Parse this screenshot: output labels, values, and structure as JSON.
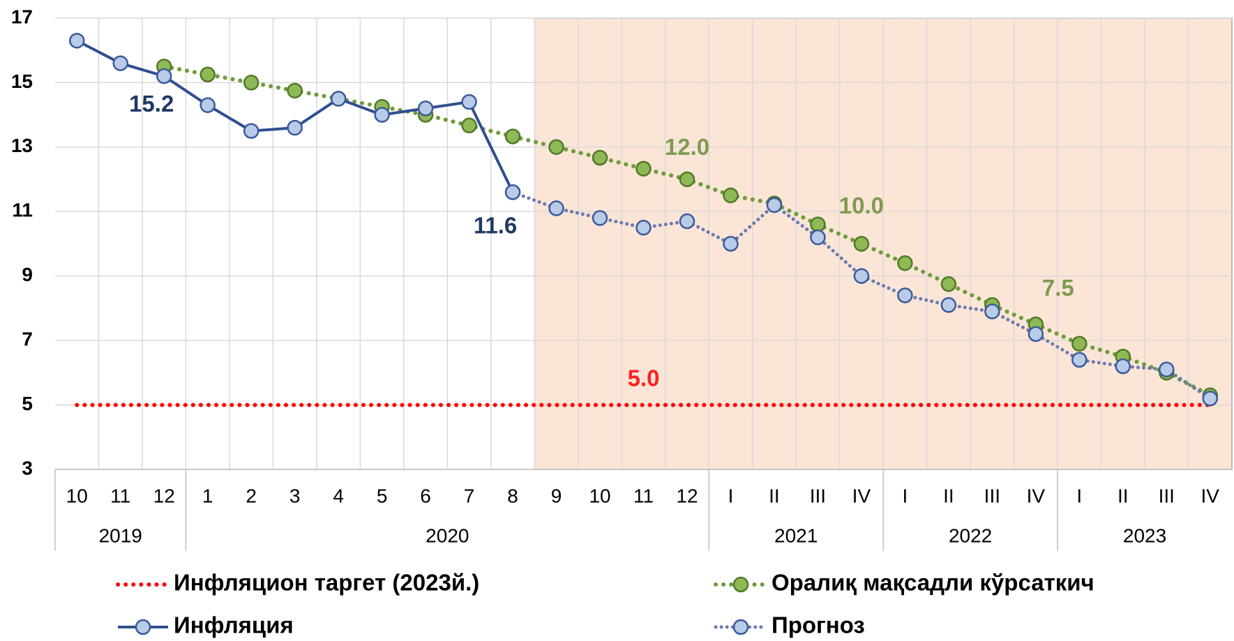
{
  "chart_data": {
    "type": "line",
    "categories": [
      "10",
      "11",
      "12",
      "1",
      "2",
      "3",
      "4",
      "5",
      "6",
      "7",
      "8",
      "9",
      "10",
      "11",
      "12",
      "I",
      "II",
      "III",
      "IV",
      "I",
      "II",
      "III",
      "IV",
      "I",
      "II",
      "III",
      "IV"
    ],
    "groups": [
      {
        "label": "2019",
        "count": 3
      },
      {
        "label": "2020",
        "count": 12
      },
      {
        "label": "2021",
        "count": 4
      },
      {
        "label": "2022",
        "count": 4
      },
      {
        "label": "2023",
        "count": 4
      }
    ],
    "ylim": [
      3,
      17
    ],
    "yticks": [
      3,
      5,
      7,
      9,
      11,
      13,
      15,
      17
    ],
    "grid": true,
    "shade_after_series": 2,
    "series": [
      {
        "name": "Инфляцион таргет (2023й.)",
        "color": "#ff0000",
        "style": "dotted",
        "markers": false,
        "values": [
          5,
          5,
          5,
          5,
          5,
          5,
          5,
          5,
          5,
          5,
          5,
          5,
          5,
          5,
          5,
          5,
          5,
          5,
          5,
          5,
          5,
          5,
          5,
          5,
          5,
          5,
          5
        ],
        "value_labels": [
          null,
          null,
          null,
          null,
          null,
          null,
          null,
          null,
          null,
          null,
          null,
          null,
          null,
          "5.0",
          null,
          null,
          null,
          null,
          null,
          null,
          null,
          null,
          null,
          null,
          null,
          null,
          null
        ]
      },
      {
        "name": "Оралиқ мақсадли кўрсаткич",
        "color": "#6f9a3c",
        "style": "dotted",
        "markers": true,
        "values": [
          null,
          null,
          15.5,
          15.25,
          15.0,
          14.75,
          14.5,
          14.25,
          14.0,
          13.67,
          13.33,
          13.0,
          12.67,
          12.33,
          12.0,
          11.5,
          11.25,
          10.6,
          10.0,
          9.4,
          8.75,
          8.1,
          7.5,
          6.9,
          6.5,
          6.0,
          5.3
        ],
        "value_labels": [
          null,
          null,
          null,
          null,
          null,
          null,
          null,
          null,
          null,
          null,
          null,
          null,
          null,
          null,
          "12.0",
          null,
          null,
          null,
          "10.0",
          null,
          null,
          null,
          "7.5",
          null,
          null,
          null,
          null
        ]
      },
      {
        "name": "Инфляция",
        "color": "#2f4f8f",
        "style": "solid",
        "markers": true,
        "values": [
          16.3,
          15.6,
          15.2,
          14.3,
          13.5,
          13.6,
          14.5,
          14.0,
          14.2,
          14.4,
          11.6,
          null,
          null,
          null,
          null,
          null,
          null,
          null,
          null,
          null,
          null,
          null,
          null,
          null,
          null,
          null,
          null
        ],
        "value_labels": [
          null,
          null,
          "15.2",
          null,
          null,
          null,
          null,
          null,
          null,
          null,
          "11.6",
          null,
          null,
          null,
          null,
          null,
          null,
          null,
          null,
          null,
          null,
          null,
          null,
          null,
          null,
          null,
          null
        ]
      },
      {
        "name": "Прогноз",
        "color": "#6c7bb0",
        "style": "dashed",
        "markers": true,
        "values": [
          null,
          null,
          null,
          null,
          null,
          null,
          null,
          null,
          null,
          null,
          11.6,
          11.1,
          10.8,
          10.5,
          10.7,
          10.0,
          11.2,
          10.2,
          9.0,
          8.4,
          8.1,
          7.9,
          7.2,
          6.4,
          6.2,
          6.1,
          5.2
        ]
      }
    ]
  }
}
